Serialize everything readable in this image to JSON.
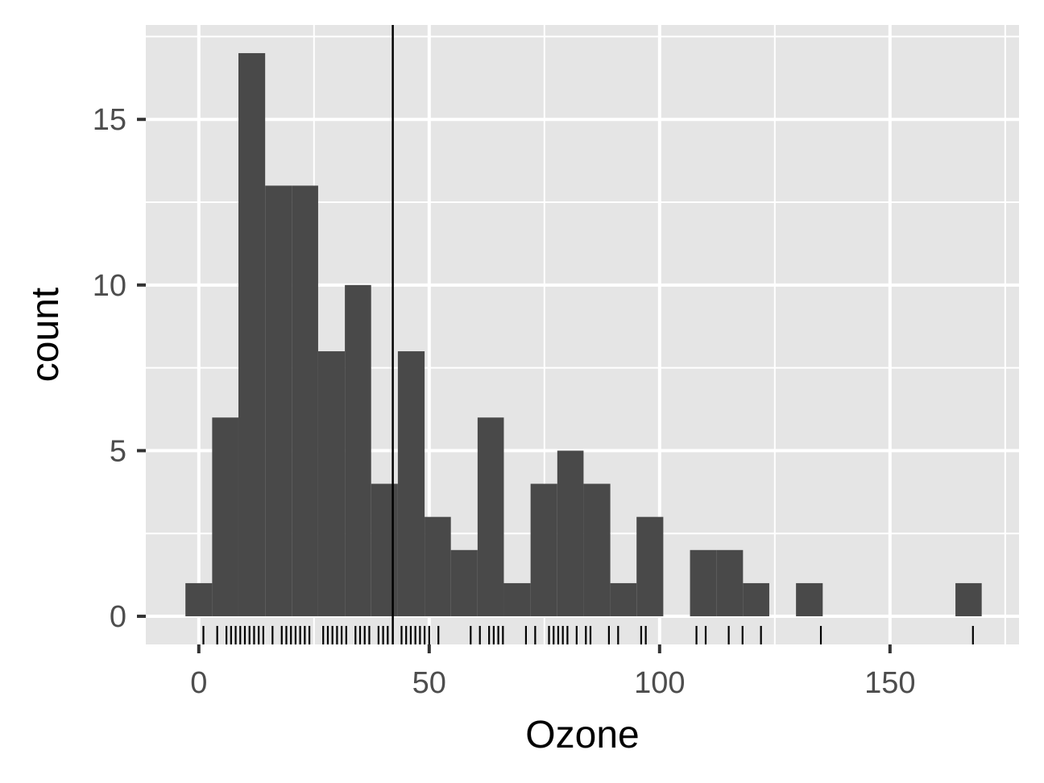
{
  "chart_data": {
    "type": "bar",
    "title": "",
    "xlabel": "Ozone",
    "ylabel": "count",
    "xlim": [
      -11.5,
      178
    ],
    "ylim": [
      -0.85,
      17.85
    ],
    "x_ticks": [
      0,
      50,
      100,
      150
    ],
    "x_tick_labels": [
      "0",
      "50",
      "100",
      "150"
    ],
    "y_ticks": [
      0,
      5,
      10,
      15
    ],
    "y_tick_labels": [
      "0",
      "5",
      "10",
      "15"
    ],
    "bin_width": 5.76,
    "bins": [
      {
        "x0": -2.9,
        "x1": 2.9,
        "count": 1
      },
      {
        "x0": 2.9,
        "x1": 8.6,
        "count": 6
      },
      {
        "x0": 8.6,
        "x1": 14.4,
        "count": 17
      },
      {
        "x0": 14.4,
        "x1": 20.2,
        "count": 13
      },
      {
        "x0": 20.2,
        "x1": 25.9,
        "count": 13
      },
      {
        "x0": 25.9,
        "x1": 31.7,
        "count": 8
      },
      {
        "x0": 31.7,
        "x1": 37.4,
        "count": 10
      },
      {
        "x0": 37.4,
        "x1": 43.2,
        "count": 4
      },
      {
        "x0": 43.2,
        "x1": 49.0,
        "count": 8
      },
      {
        "x0": 49.0,
        "x1": 54.7,
        "count": 3
      },
      {
        "x0": 54.7,
        "x1": 60.5,
        "count": 2
      },
      {
        "x0": 60.5,
        "x1": 66.2,
        "count": 6
      },
      {
        "x0": 66.2,
        "x1": 72.0,
        "count": 1
      },
      {
        "x0": 72.0,
        "x1": 77.8,
        "count": 4
      },
      {
        "x0": 77.8,
        "x1": 83.5,
        "count": 5
      },
      {
        "x0": 83.5,
        "x1": 89.3,
        "count": 4
      },
      {
        "x0": 89.3,
        "x1": 95.0,
        "count": 1
      },
      {
        "x0": 95.0,
        "x1": 100.8,
        "count": 3
      },
      {
        "x0": 100.8,
        "x1": 106.6,
        "count": 0
      },
      {
        "x0": 106.6,
        "x1": 112.3,
        "count": 2
      },
      {
        "x0": 112.3,
        "x1": 118.1,
        "count": 2
      },
      {
        "x0": 118.1,
        "x1": 123.8,
        "count": 1
      },
      {
        "x0": 123.8,
        "x1": 129.6,
        "count": 0
      },
      {
        "x0": 129.6,
        "x1": 135.4,
        "count": 1
      },
      {
        "x0": 135.4,
        "x1": 141.1,
        "count": 0
      },
      {
        "x0": 141.1,
        "x1": 146.9,
        "count": 0
      },
      {
        "x0": 146.9,
        "x1": 152.6,
        "count": 0
      },
      {
        "x0": 152.6,
        "x1": 158.4,
        "count": 0
      },
      {
        "x0": 158.4,
        "x1": 164.2,
        "count": 0
      },
      {
        "x0": 164.2,
        "x1": 169.9,
        "count": 1
      }
    ],
    "mean_line_x": 42.1,
    "rug_values": [
      1,
      4,
      6,
      7,
      8,
      9,
      10,
      11,
      12,
      13,
      14,
      16,
      18,
      19,
      20,
      21,
      22,
      23,
      24,
      27,
      28,
      29,
      30,
      31,
      32,
      34,
      35,
      36,
      37,
      39,
      40,
      41,
      44,
      45,
      46,
      47,
      48,
      49,
      50,
      52,
      59,
      61,
      63,
      64,
      65,
      66,
      71,
      73,
      76,
      77,
      78,
      79,
      80,
      82,
      84,
      85,
      89,
      91,
      96,
      97,
      108,
      110,
      115,
      118,
      122,
      135,
      168
    ],
    "grid": true,
    "legend": "none",
    "colors": {
      "panel_background": "#e5e5e5",
      "grid_line": "#ffffff",
      "bar_fill": "#494949",
      "mean_line": "#000000",
      "rug": "#000000",
      "tick_mark": "#333333"
    }
  }
}
